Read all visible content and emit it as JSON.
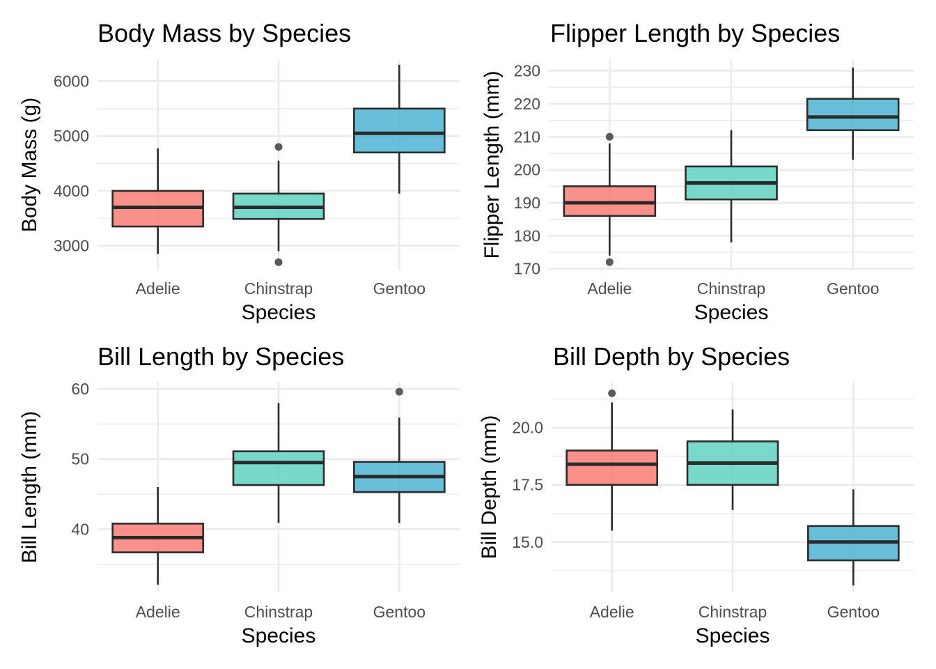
{
  "chart_data": [
    {
      "type": "boxplot",
      "title": "Body Mass by Species",
      "xlabel": "Species",
      "ylabel": "Body Mass (g)",
      "categories": [
        "Adelie",
        "Chinstrap",
        "Gentoo"
      ],
      "ylim": [
        2550,
        6400
      ],
      "yticks": [
        3000,
        4000,
        5000,
        6000
      ],
      "ytick_labels": [
        "3000",
        "4000",
        "5000",
        "6000"
      ],
      "boxes": [
        {
          "category": "Adelie",
          "whisker_low": 2850,
          "q1": 3350,
          "median": 3700,
          "q3": 4000,
          "whisker_high": 4775,
          "outliers": []
        },
        {
          "category": "Chinstrap",
          "whisker_low": 2900,
          "q1": 3488,
          "median": 3700,
          "q3": 3950,
          "whisker_high": 4550,
          "outliers": [
            2700,
            4800
          ]
        },
        {
          "category": "Gentoo",
          "whisker_low": 3950,
          "q1": 4700,
          "median": 5050,
          "q3": 5500,
          "whisker_high": 6300,
          "outliers": []
        }
      ],
      "grid": true
    },
    {
      "type": "boxplot",
      "title": "Flipper Length by Species",
      "xlabel": "Species",
      "ylabel": "Flipper Length (mm)",
      "categories": [
        "Adelie",
        "Chinstrap",
        "Gentoo"
      ],
      "ylim": [
        169.5,
        233.5
      ],
      "yticks": [
        170,
        180,
        190,
        200,
        210,
        220,
        230
      ],
      "ytick_labels": [
        "170",
        "180",
        "190",
        "200",
        "210",
        "220",
        "230"
      ],
      "boxes": [
        {
          "category": "Adelie",
          "whisker_low": 174,
          "q1": 186,
          "median": 190,
          "q3": 195,
          "whisker_high": 208,
          "outliers": [
            172,
            210
          ]
        },
        {
          "category": "Chinstrap",
          "whisker_low": 178,
          "q1": 191,
          "median": 196,
          "q3": 201,
          "whisker_high": 212,
          "outliers": []
        },
        {
          "category": "Gentoo",
          "whisker_low": 203,
          "q1": 212,
          "median": 216,
          "q3": 221.5,
          "whisker_high": 231,
          "outliers": []
        }
      ],
      "grid": true
    },
    {
      "type": "boxplot",
      "title": "Bill Length by Species",
      "xlabel": "Species",
      "ylabel": "Bill Length (mm)",
      "categories": [
        "Adelie",
        "Chinstrap",
        "Gentoo"
      ],
      "ylim": [
        31,
        61
      ],
      "yticks": [
        40,
        50,
        60
      ],
      "ytick_labels": [
        "40",
        "50",
        "60"
      ],
      "boxes": [
        {
          "category": "Adelie",
          "whisker_low": 32.1,
          "q1": 36.7,
          "median": 38.8,
          "q3": 40.8,
          "whisker_high": 46,
          "outliers": []
        },
        {
          "category": "Chinstrap",
          "whisker_low": 40.9,
          "q1": 46.3,
          "median": 49.5,
          "q3": 51.1,
          "whisker_high": 58,
          "outliers": []
        },
        {
          "category": "Gentoo",
          "whisker_low": 40.9,
          "q1": 45.3,
          "median": 47.5,
          "q3": 49.6,
          "whisker_high": 55.9,
          "outliers": [
            59.6
          ]
        }
      ],
      "grid": true
    },
    {
      "type": "boxplot",
      "title": "Bill Depth by Species",
      "xlabel": "Species",
      "ylabel": "Bill Depth (mm)",
      "categories": [
        "Adelie",
        "Chinstrap",
        "Gentoo"
      ],
      "ylim": [
        12.8,
        22
      ],
      "yticks": [
        15,
        17.5,
        20
      ],
      "ytick_labels": [
        "15.0",
        "17.5",
        "20.0"
      ],
      "boxes": [
        {
          "category": "Adelie",
          "whisker_low": 15.5,
          "q1": 17.5,
          "median": 18.4,
          "q3": 19,
          "whisker_high": 21.1,
          "outliers": [
            21.5
          ]
        },
        {
          "category": "Chinstrap",
          "whisker_low": 16.4,
          "q1": 17.5,
          "median": 18.45,
          "q3": 19.4,
          "whisker_high": 20.8,
          "outliers": []
        },
        {
          "category": "Gentoo",
          "whisker_low": 13.1,
          "q1": 14.2,
          "median": 15,
          "q3": 15.7,
          "whisker_high": 17.3,
          "outliers": []
        }
      ],
      "grid": true
    }
  ],
  "colors": {
    "Adelie": "#f8766d",
    "Chinstrap": "#56cfbd",
    "Gentoo": "#44afcf",
    "outline": "#2b2b2b",
    "outlier": "#5a5a5a",
    "grid": "#ebebeb"
  }
}
